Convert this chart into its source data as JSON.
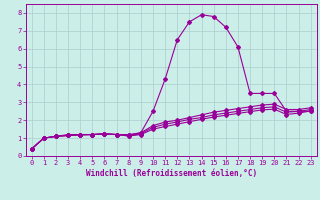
{
  "xlabel": "Windchill (Refroidissement éolien,°C)",
  "bg_color": "#cceee8",
  "grid_color": "#aacccc",
  "line_color": "#990099",
  "xlim": [
    -0.5,
    23.5
  ],
  "ylim": [
    0,
    8.5
  ],
  "xticks": [
    0,
    1,
    2,
    3,
    4,
    5,
    6,
    7,
    8,
    9,
    10,
    11,
    12,
    13,
    14,
    15,
    16,
    17,
    18,
    19,
    20,
    21,
    22,
    23
  ],
  "yticks": [
    0,
    1,
    2,
    3,
    4,
    5,
    6,
    7,
    8
  ],
  "lines": [
    {
      "x": [
        0,
        1,
        2,
        3,
        4,
        5,
        6,
        7,
        8,
        9,
        10,
        11,
        12,
        13,
        14,
        15,
        16,
        17,
        18,
        19,
        20,
        21,
        22,
        23
      ],
      "y": [
        0.4,
        1.0,
        1.1,
        1.2,
        1.2,
        1.2,
        1.25,
        1.2,
        1.2,
        1.3,
        2.5,
        4.3,
        6.5,
        7.5,
        7.9,
        7.8,
        7.2,
        6.1,
        3.5,
        3.5,
        3.5,
        2.5,
        2.5,
        2.5
      ]
    },
    {
      "x": [
        0,
        1,
        2,
        3,
        4,
        5,
        6,
        7,
        8,
        9,
        10,
        11,
        12,
        13,
        14,
        15,
        16,
        17,
        18,
        19,
        20,
        21,
        22,
        23
      ],
      "y": [
        0.4,
        1.0,
        1.1,
        1.15,
        1.2,
        1.2,
        1.25,
        1.2,
        1.15,
        1.3,
        1.7,
        1.9,
        2.0,
        2.15,
        2.3,
        2.45,
        2.55,
        2.65,
        2.75,
        2.85,
        2.9,
        2.6,
        2.6,
        2.7
      ]
    },
    {
      "x": [
        0,
        1,
        2,
        3,
        4,
        5,
        6,
        7,
        8,
        9,
        10,
        11,
        12,
        13,
        14,
        15,
        16,
        17,
        18,
        19,
        20,
        21,
        22,
        23
      ],
      "y": [
        0.4,
        1.0,
        1.1,
        1.15,
        1.18,
        1.2,
        1.22,
        1.2,
        1.12,
        1.25,
        1.6,
        1.78,
        1.9,
        2.05,
        2.15,
        2.3,
        2.4,
        2.5,
        2.6,
        2.7,
        2.75,
        2.45,
        2.5,
        2.6
      ]
    },
    {
      "x": [
        0,
        1,
        2,
        3,
        4,
        5,
        6,
        7,
        8,
        9,
        10,
        11,
        12,
        13,
        14,
        15,
        16,
        17,
        18,
        19,
        20,
        21,
        22,
        23
      ],
      "y": [
        0.4,
        1.0,
        1.1,
        1.15,
        1.18,
        1.2,
        1.22,
        1.2,
        1.12,
        1.2,
        1.5,
        1.65,
        1.78,
        1.92,
        2.05,
        2.18,
        2.28,
        2.38,
        2.48,
        2.58,
        2.62,
        2.32,
        2.4,
        2.52
      ]
    }
  ],
  "marker": "D",
  "markersize": 2.0,
  "linewidth": 0.8,
  "xlabel_fontsize": 5.5,
  "tick_fontsize": 5.0
}
